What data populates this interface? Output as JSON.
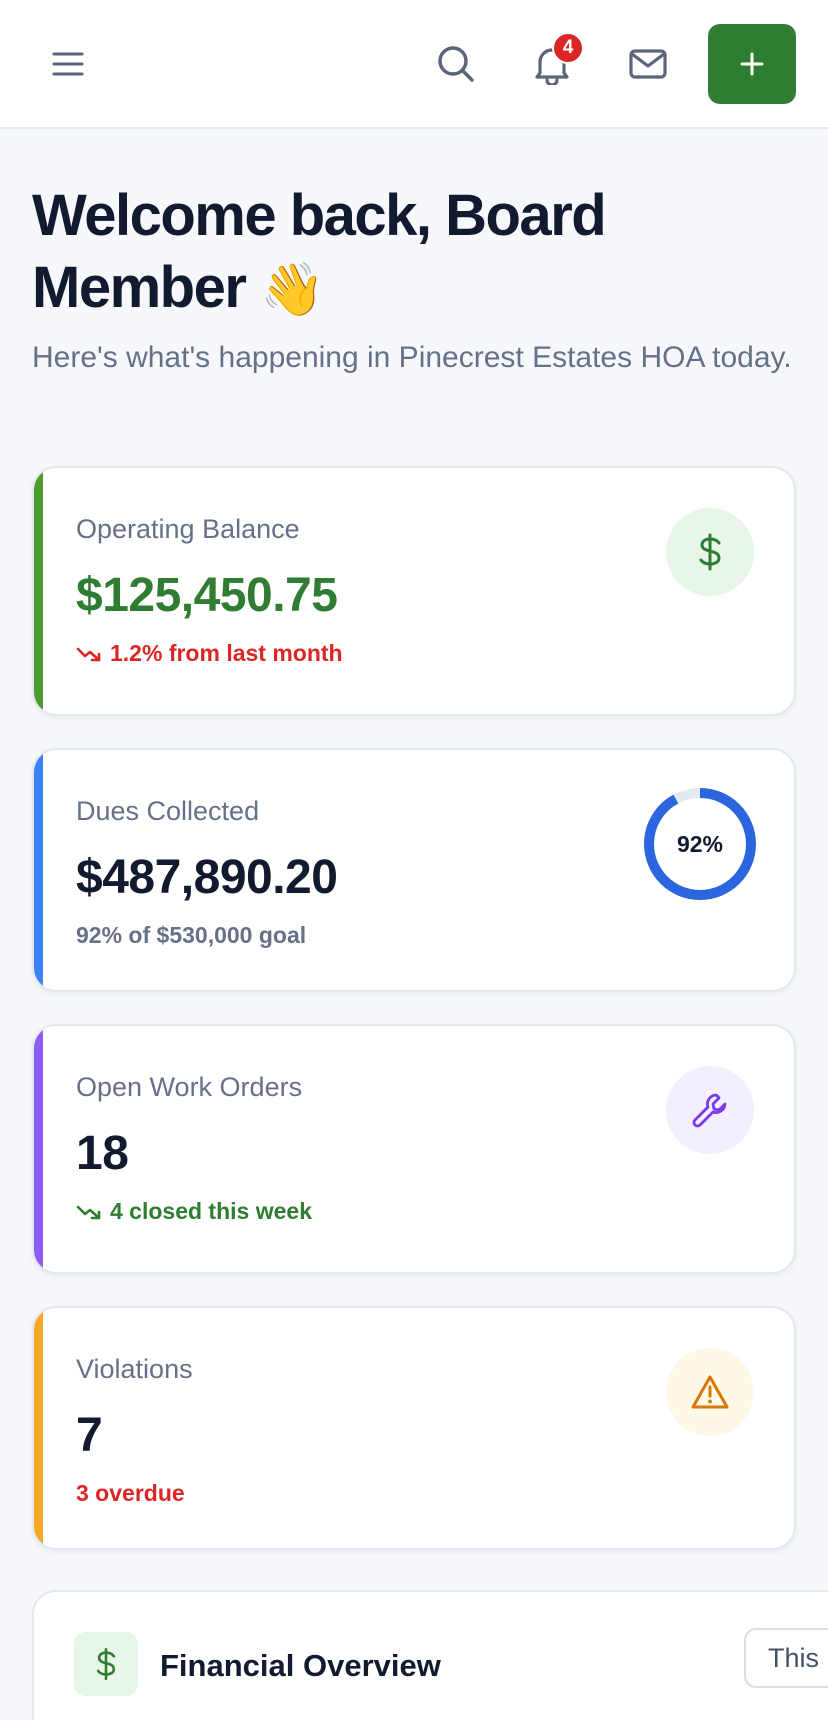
{
  "topbar": {
    "menu_icon": "hamburger-icon",
    "search_icon": "search-icon",
    "bell_icon": "bell-icon",
    "mail_icon": "mail-icon",
    "add_icon": "plus-icon",
    "notification_count": "4",
    "brand_color": "#2e7d32"
  },
  "welcome": {
    "title": "Welcome back, Board Member",
    "emoji": "👋",
    "subtitle": "Here's what's happening in Pinecrest Estates HOA today."
  },
  "cards": {
    "operating": {
      "label": "Operating Balance",
      "value": "$125,450.75",
      "trend": "1.2% from last month",
      "trend_icon": "trending-down-icon",
      "accent": "#4c9b2f",
      "icon": "dollar-icon"
    },
    "dues": {
      "label": "Dues Collected",
      "value": "$487,890.20",
      "note": "92% of $530,000 goal",
      "progress_percent": 92,
      "progress_label": "92%",
      "accent": "#3b82f6"
    },
    "work_orders": {
      "label": "Open Work Orders",
      "value": "18",
      "note": "4 closed this week",
      "note_icon": "trending-down-icon",
      "accent": "#8b5cf6",
      "icon": "wrench-icon"
    },
    "violations": {
      "label": "Violations",
      "value": "7",
      "note": "3 overdue",
      "accent": "#f5a623",
      "icon": "warning-icon"
    }
  },
  "financial": {
    "title": "Financial Overview",
    "period": "This",
    "icon": "dollar-icon"
  }
}
